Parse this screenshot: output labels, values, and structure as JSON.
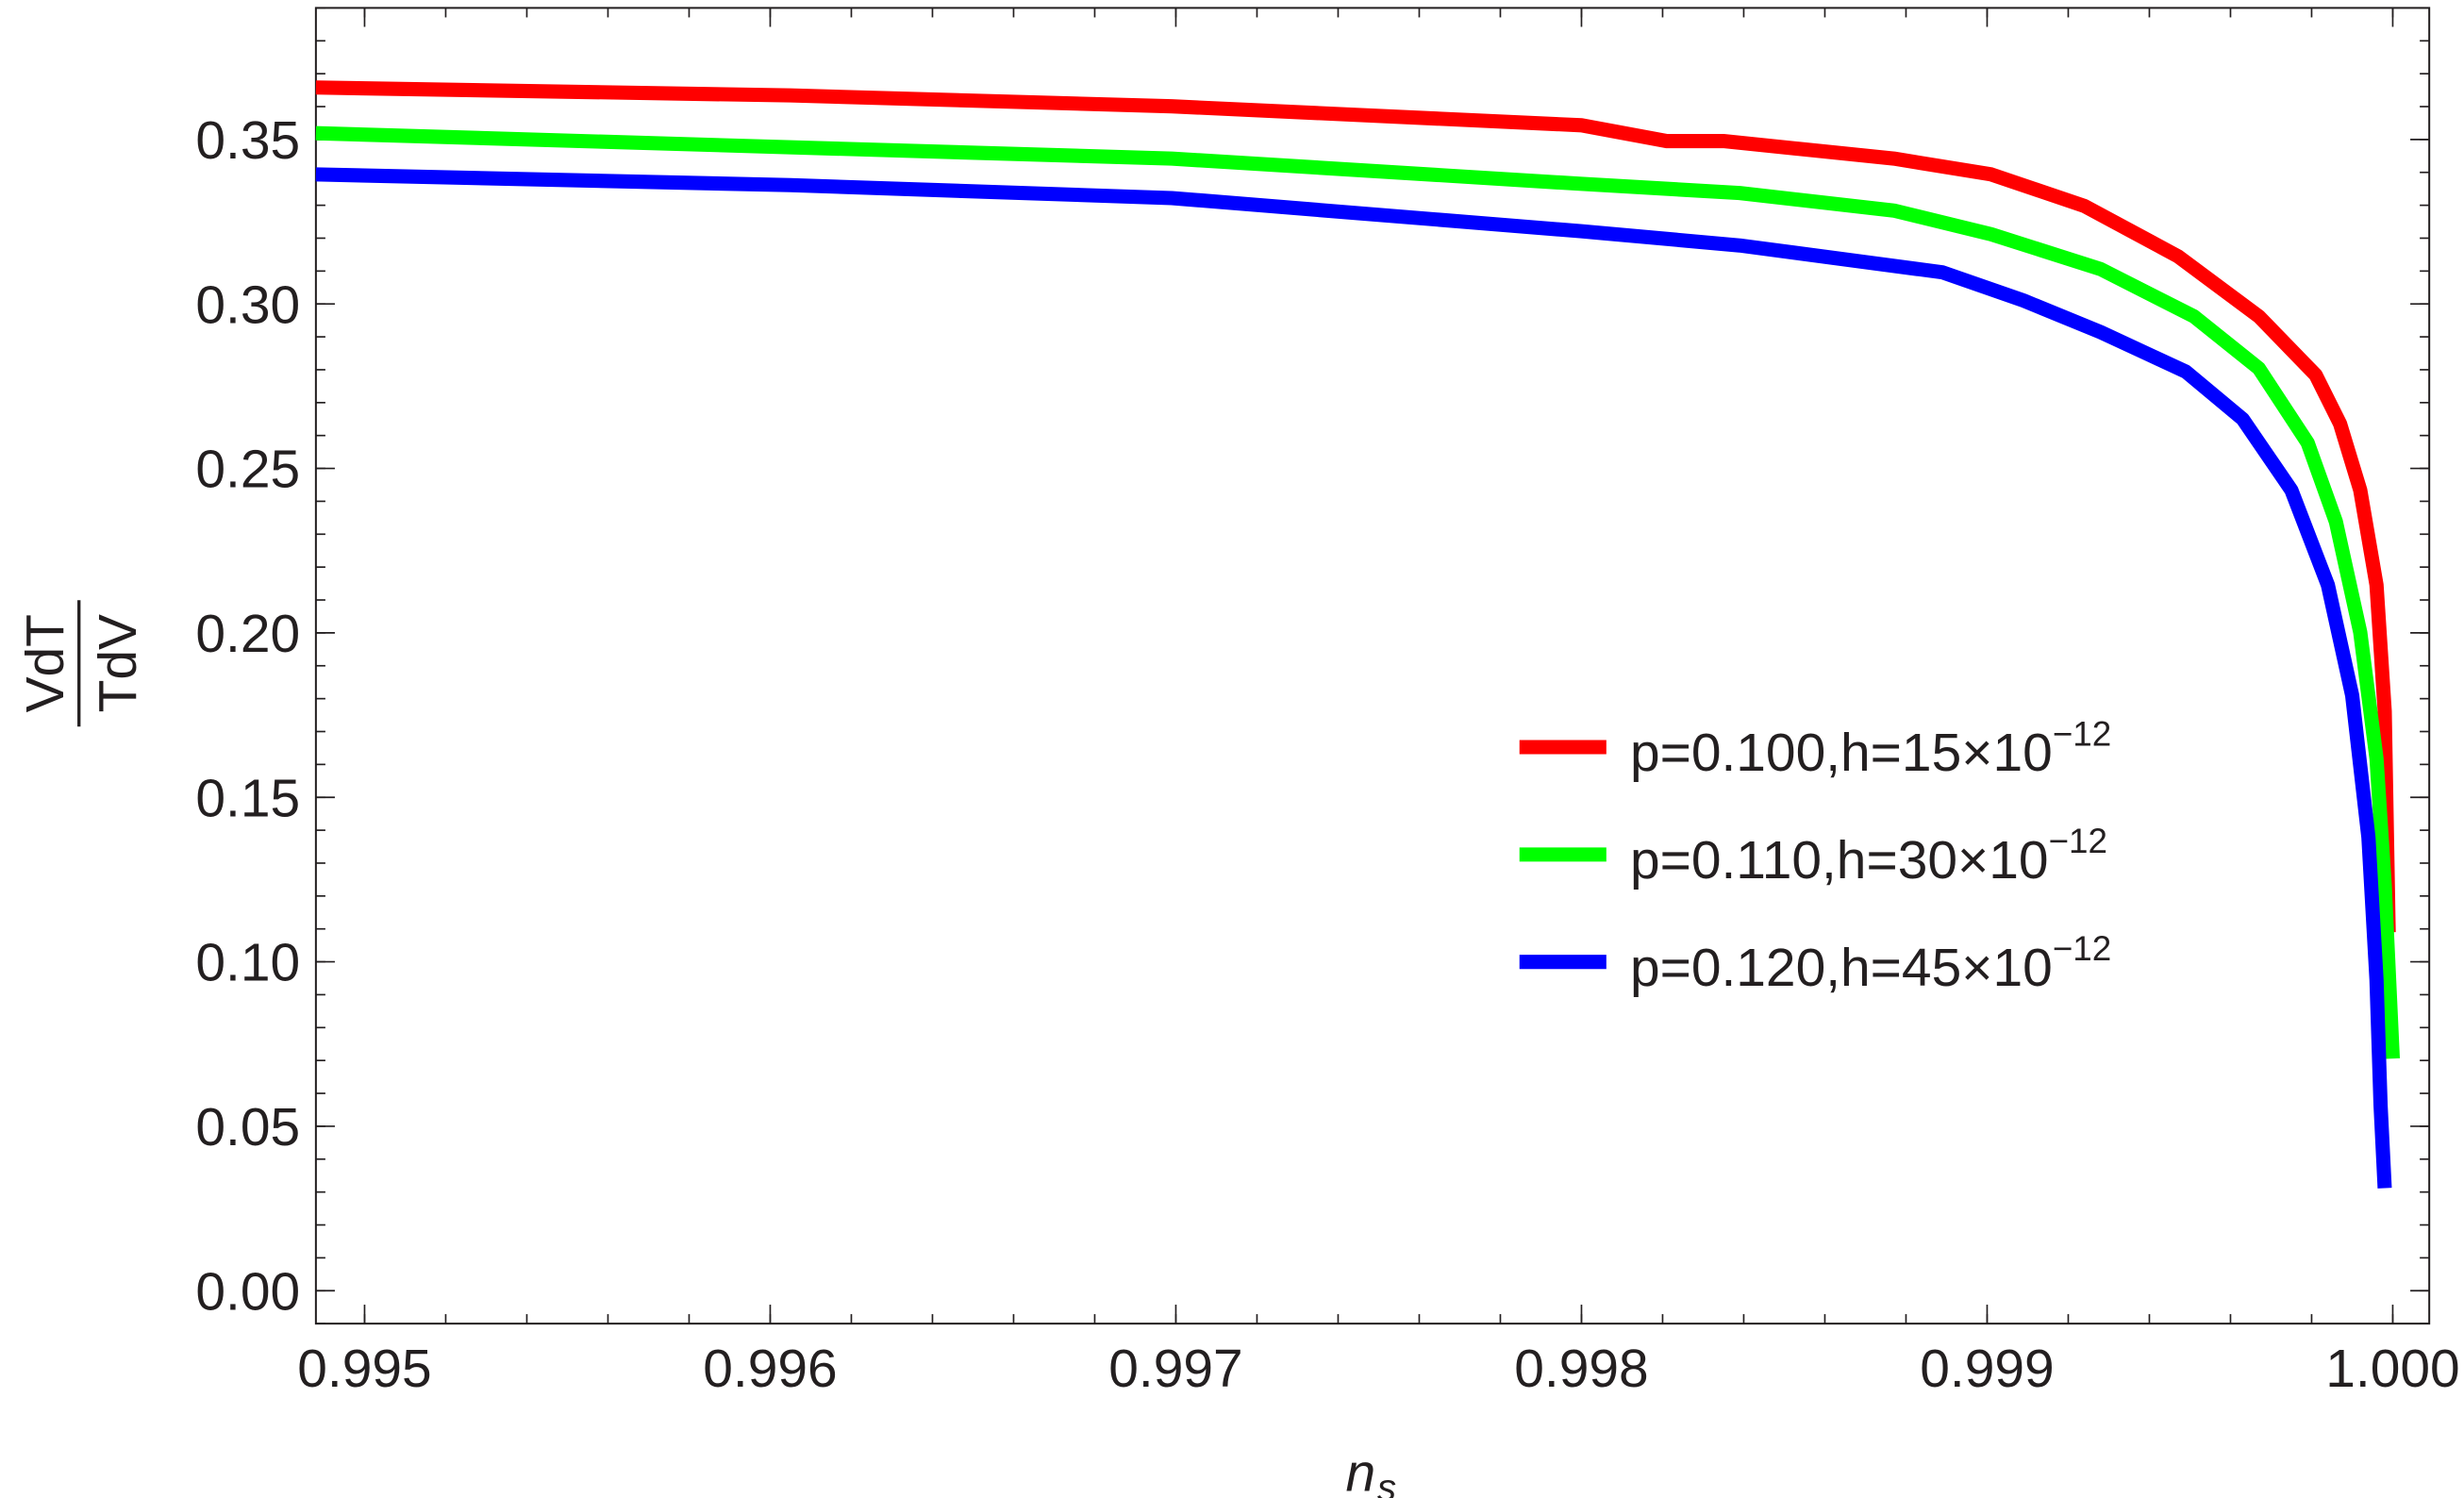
{
  "chart_data": {
    "type": "line",
    "title": "",
    "xlabel": "n",
    "xlabel_sub": "s",
    "ylabel_numerator": "VdT",
    "ylabel_denominator": "TdV",
    "xlim": [
      0.99488,
      1.00009
    ],
    "ylim": [
      -0.01,
      0.39
    ],
    "x_ticks": [
      0.995,
      0.996,
      0.997,
      0.998,
      0.999,
      1.0
    ],
    "x_tick_labels": [
      "0.995",
      "0.996",
      "0.997",
      "0.998",
      "0.999",
      "1.000"
    ],
    "x_minor_step": 0.0002,
    "y_ticks": [
      0.0,
      0.05,
      0.1,
      0.15,
      0.2,
      0.25,
      0.3,
      0.35
    ],
    "y_tick_labels": [
      "0.00",
      "0.05",
      "0.10",
      "0.15",
      "0.20",
      "0.25",
      "0.30",
      "0.35"
    ],
    "y_minor_step": 0.01,
    "grid": false,
    "frame": true,
    "legend_position": "center-right",
    "series": [
      {
        "name": "p=0.100,h=15×10",
        "name_exp": "−12",
        "color": "#ff0000",
        "x": [
          0.99488,
          0.99605,
          0.99699,
          0.998,
          0.99821,
          0.99835,
          0.99877,
          0.99901,
          0.99924,
          0.99947,
          0.99967,
          0.99981,
          0.99987,
          0.99992,
          0.99996,
          0.99998,
          0.99999
        ],
        "y": [
          0.3658,
          0.3634,
          0.3601,
          0.3543,
          0.3495,
          0.3495,
          0.3442,
          0.3394,
          0.3298,
          0.3145,
          0.2962,
          0.2784,
          0.2636,
          0.2434,
          0.2146,
          0.1762,
          0.109
        ]
      },
      {
        "name": "p=0.110,h=30×10",
        "name_exp": "−12",
        "color": "#00ff00",
        "x": [
          0.99488,
          0.99699,
          0.998,
          0.99839,
          0.99877,
          0.99901,
          0.99928,
          0.99951,
          0.99967,
          0.99979,
          0.99986,
          0.99992,
          0.99996,
          0.99998,
          1.0
        ],
        "y": [
          0.3519,
          0.3442,
          0.3365,
          0.3337,
          0.3284,
          0.3212,
          0.3106,
          0.2962,
          0.2804,
          0.2578,
          0.2338,
          0.2002,
          0.1618,
          0.1234,
          0.0706
        ]
      },
      {
        "name": "p=0.120,h=45×10",
        "name_exp": "−12",
        "color": "#0000ff",
        "x": [
          0.99488,
          0.99605,
          0.99699,
          0.998,
          0.99839,
          0.99889,
          0.99909,
          0.99928,
          0.99949,
          0.99963,
          0.99975,
          0.99984,
          0.9999,
          0.99994,
          0.99996,
          0.99997,
          0.99998
        ],
        "y": [
          0.3394,
          0.3361,
          0.3322,
          0.3221,
          0.3178,
          0.3096,
          0.301,
          0.2914,
          0.2794,
          0.265,
          0.2434,
          0.2146,
          0.181,
          0.1378,
          0.0946,
          0.0562,
          0.0312
        ]
      }
    ]
  }
}
